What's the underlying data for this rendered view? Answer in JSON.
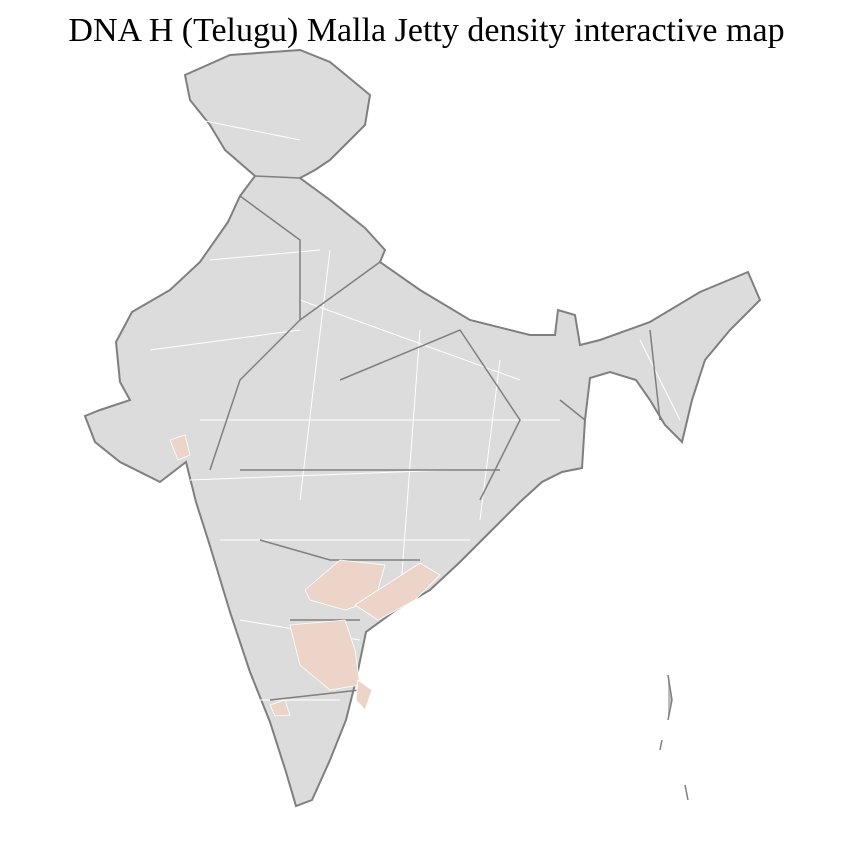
{
  "title": "DNA H (Telugu) Malla Jetty density interactive map",
  "colors": {
    "base_region": "#dcdcdc",
    "highlighted_region": "#ecd5c8",
    "state_border": "#7f7f7f",
    "district_border": "#ffffff"
  },
  "map": {
    "type": "choropleth",
    "country": "India",
    "highlighted_areas": [
      "Telangana districts",
      "coastal Andhra Pradesh",
      "Rayalaseema",
      "Gujarat district",
      "Karnataka district",
      "Tamil Nadu district"
    ]
  }
}
